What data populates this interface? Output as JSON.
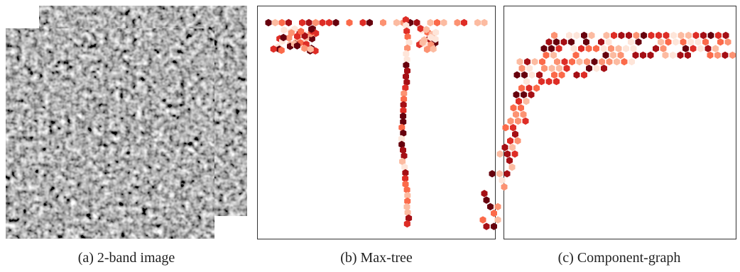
{
  "figure": {
    "panels": [
      {
        "caption": "(a) 2-band image"
      },
      {
        "caption": "(b) Max-tree"
      },
      {
        "caption": "(c) Component-graph"
      }
    ]
  }
}
